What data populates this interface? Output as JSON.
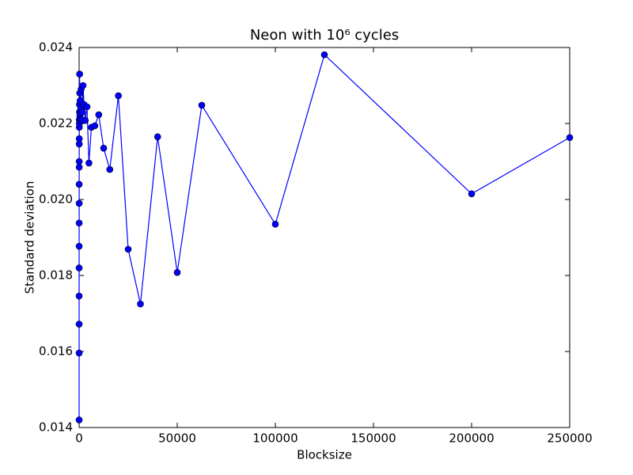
{
  "chart_data": {
    "type": "line",
    "title": "Neon with 10⁶ cycles",
    "x_label": "Blocksize",
    "y_label": "Standard deviation",
    "xlim": [
      0,
      250000
    ],
    "ylim": [
      0.014,
      0.024
    ],
    "xticks": [
      0,
      50000,
      100000,
      150000,
      200000,
      250000
    ],
    "yticks": [
      0.014,
      0.016,
      0.018,
      {
        "value": 0.02,
        "label": "0.020"
      },
      0.022,
      0.024
    ],
    "grid": false,
    "series": [
      {
        "name": "Neon",
        "color": "#0000ff",
        "x": [
          1,
          2,
          4,
          5,
          8,
          10,
          16,
          20,
          25,
          32,
          40,
          50,
          64,
          80,
          100,
          125,
          160,
          200,
          250,
          320,
          400,
          500,
          625,
          800,
          1000,
          1250,
          1600,
          2000,
          2500,
          3125,
          4000,
          5000,
          6250,
          8000,
          10000,
          12500,
          15625,
          20000,
          25000,
          31250,
          40000,
          50000,
          62500,
          100000,
          125000,
          200000,
          250000
        ],
        "values": [
          0.0142,
          0.01596,
          0.01672,
          0.01746,
          0.0182,
          0.01877,
          0.01938,
          0.0199,
          0.0204,
          0.02085,
          0.021,
          0.02146,
          0.0216,
          0.0219,
          0.0221,
          0.022,
          0.0225,
          0.0223,
          0.0233,
          0.0228,
          0.0222,
          0.0226,
          0.0221,
          0.0224,
          0.0229,
          0.0221,
          0.0223,
          0.023,
          0.0225,
          0.02208,
          0.02244,
          0.02096,
          0.0219,
          0.02194,
          0.02223,
          0.02135,
          0.02079,
          0.02273,
          0.01869,
          0.01725,
          0.02165,
          0.01808,
          0.02248,
          0.01935,
          0.02381,
          0.02015,
          0.02163
        ]
      }
    ]
  }
}
